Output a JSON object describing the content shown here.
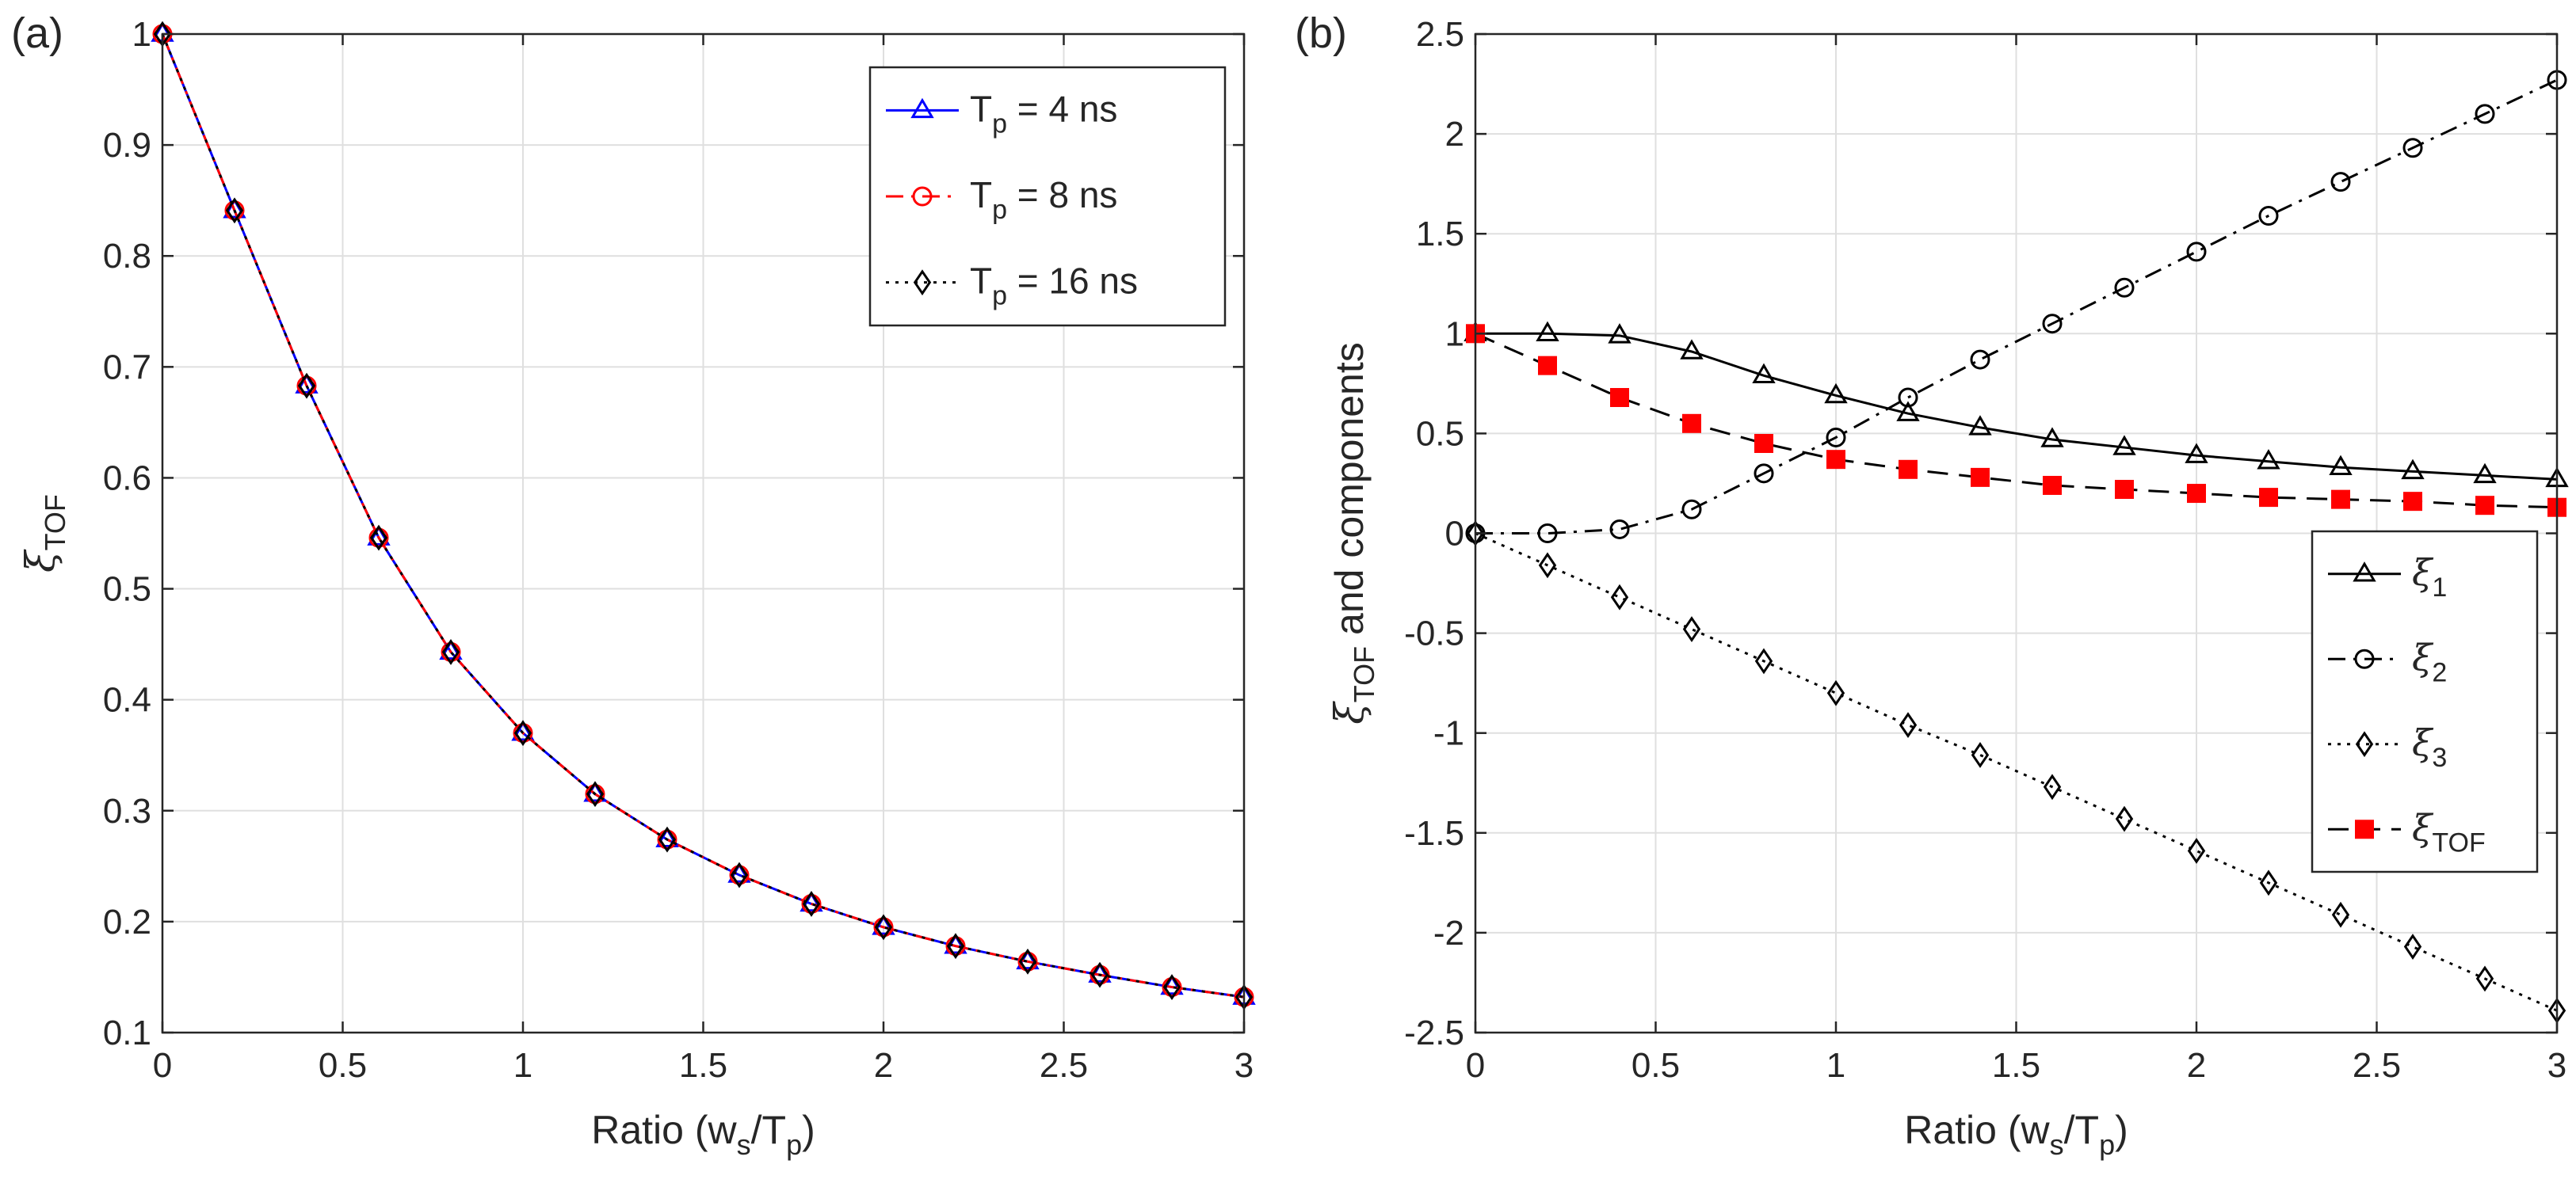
{
  "chart_data": [
    {
      "panel_label": "(a)",
      "type": "line",
      "xlabel": "Ratio (w",
      "xlabel_sub1": "s",
      "xlabel_mid": "/T",
      "xlabel_sub2": "p",
      "xlabel_end": ")",
      "ylabel_symbol": "ξ",
      "ylabel_sub": "TOF",
      "xlim": [
        0,
        3
      ],
      "ylim": [
        0.1,
        1
      ],
      "xticks": [
        0,
        0.5,
        1,
        1.5,
        2,
        2.5,
        3
      ],
      "xtick_labels": [
        "0",
        "0.5",
        "1",
        "1.5",
        "2",
        "2.5",
        "3"
      ],
      "yticks": [
        0.1,
        0.2,
        0.3,
        0.4,
        0.5,
        0.6,
        0.7,
        0.8,
        0.9,
        1
      ],
      "ytick_labels": [
        "0.1",
        "0.2",
        "0.3",
        "0.4",
        "0.5",
        "0.6",
        "0.7",
        "0.8",
        "0.9",
        "1"
      ],
      "grid": true,
      "legend_position": "top-right",
      "x": [
        0,
        0.2,
        0.4,
        0.6,
        0.8,
        1.0,
        1.2,
        1.4,
        1.6,
        1.8,
        2.0,
        2.2,
        2.4,
        2.6,
        2.8,
        3.0
      ],
      "series": [
        {
          "name": "T_p = 4 ns",
          "legend_pre": "T",
          "legend_sub": "p",
          "legend_post": " = 4 ns",
          "color": "#0000ff",
          "linestyle": "solid",
          "marker": "triangle",
          "values": [
            1.0,
            0.841,
            0.683,
            0.546,
            0.443,
            0.37,
            0.315,
            0.274,
            0.242,
            0.216,
            0.195,
            0.178,
            0.164,
            0.152,
            0.141,
            0.132
          ]
        },
        {
          "name": "T_p = 8 ns",
          "legend_pre": "T",
          "legend_sub": "p",
          "legend_post": " = 8 ns",
          "color": "#ff0000",
          "linestyle": "dashdot",
          "marker": "circle",
          "values": [
            1.0,
            0.841,
            0.683,
            0.546,
            0.443,
            0.37,
            0.315,
            0.274,
            0.242,
            0.216,
            0.195,
            0.178,
            0.164,
            0.152,
            0.141,
            0.132
          ]
        },
        {
          "name": "T_p = 16 ns",
          "legend_pre": "T",
          "legend_sub": "p",
          "legend_post": " = 16 ns",
          "color": "#000000",
          "linestyle": "dotted",
          "marker": "diamond",
          "values": [
            1.0,
            0.841,
            0.683,
            0.546,
            0.443,
            0.37,
            0.315,
            0.274,
            0.242,
            0.216,
            0.195,
            0.178,
            0.164,
            0.152,
            0.141,
            0.132
          ]
        }
      ]
    },
    {
      "panel_label": "(b)",
      "type": "line",
      "xlabel": "Ratio (w",
      "xlabel_sub1": "s",
      "xlabel_mid": "/T",
      "xlabel_sub2": "p",
      "xlabel_end": ")",
      "ylabel_symbol": "ξ",
      "ylabel_sub": "TOF",
      "ylabel_rest": " and components",
      "xlim": [
        0,
        3
      ],
      "ylim": [
        -2.5,
        2.5
      ],
      "xticks": [
        0,
        0.5,
        1,
        1.5,
        2,
        2.5,
        3
      ],
      "xtick_labels": [
        "0",
        "0.5",
        "1",
        "1.5",
        "2",
        "2.5",
        "3"
      ],
      "yticks": [
        -2.5,
        -2,
        -1.5,
        -1,
        -0.5,
        0,
        0.5,
        1,
        1.5,
        2,
        2.5
      ],
      "ytick_labels": [
        "-2.5",
        "-2",
        "-1.5",
        "-1",
        "-0.5",
        "0",
        "0.5",
        "1",
        "1.5",
        "2",
        "2.5"
      ],
      "grid": true,
      "legend_position": "bottom-right",
      "x": [
        0,
        0.2,
        0.4,
        0.6,
        0.8,
        1.0,
        1.2,
        1.4,
        1.6,
        1.8,
        2.0,
        2.2,
        2.4,
        2.6,
        2.8,
        3.0
      ],
      "series": [
        {
          "name": "ξ_1",
          "legend_pre": "ξ",
          "legend_sub": "1",
          "legend_post": "",
          "color": "#000000",
          "linestyle": "solid",
          "marker": "triangle",
          "values": [
            1.0,
            1.0,
            0.99,
            0.91,
            0.79,
            0.69,
            0.6,
            0.53,
            0.47,
            0.43,
            0.39,
            0.36,
            0.33,
            0.31,
            0.29,
            0.27
          ]
        },
        {
          "name": "ξ_2",
          "legend_pre": "ξ",
          "legend_sub": "2",
          "legend_post": "",
          "color": "#000000",
          "linestyle": "dashdot",
          "marker": "circle",
          "values": [
            0.0,
            0.0,
            0.02,
            0.12,
            0.3,
            0.48,
            0.68,
            0.87,
            1.05,
            1.23,
            1.41,
            1.59,
            1.76,
            1.93,
            2.1,
            2.27
          ]
        },
        {
          "name": "ξ_3",
          "legend_pre": "ξ",
          "legend_sub": "3",
          "legend_post": "",
          "color": "#000000",
          "linestyle": "dotted",
          "marker": "diamond",
          "values": [
            0.0,
            -0.16,
            -0.32,
            -0.48,
            -0.64,
            -0.8,
            -0.96,
            -1.11,
            -1.27,
            -1.43,
            -1.59,
            -1.75,
            -1.91,
            -2.07,
            -2.23,
            -2.39
          ]
        },
        {
          "name": "ξ_TOF",
          "legend_pre": "ξ",
          "legend_sub": "TOF",
          "legend_post": "",
          "color": "#000000",
          "marker_color": "#ff0000",
          "linestyle": "dashed",
          "marker": "square",
          "values": [
            1.0,
            0.84,
            0.68,
            0.55,
            0.45,
            0.37,
            0.32,
            0.28,
            0.24,
            0.22,
            0.2,
            0.18,
            0.17,
            0.16,
            0.14,
            0.13
          ]
        }
      ]
    }
  ]
}
